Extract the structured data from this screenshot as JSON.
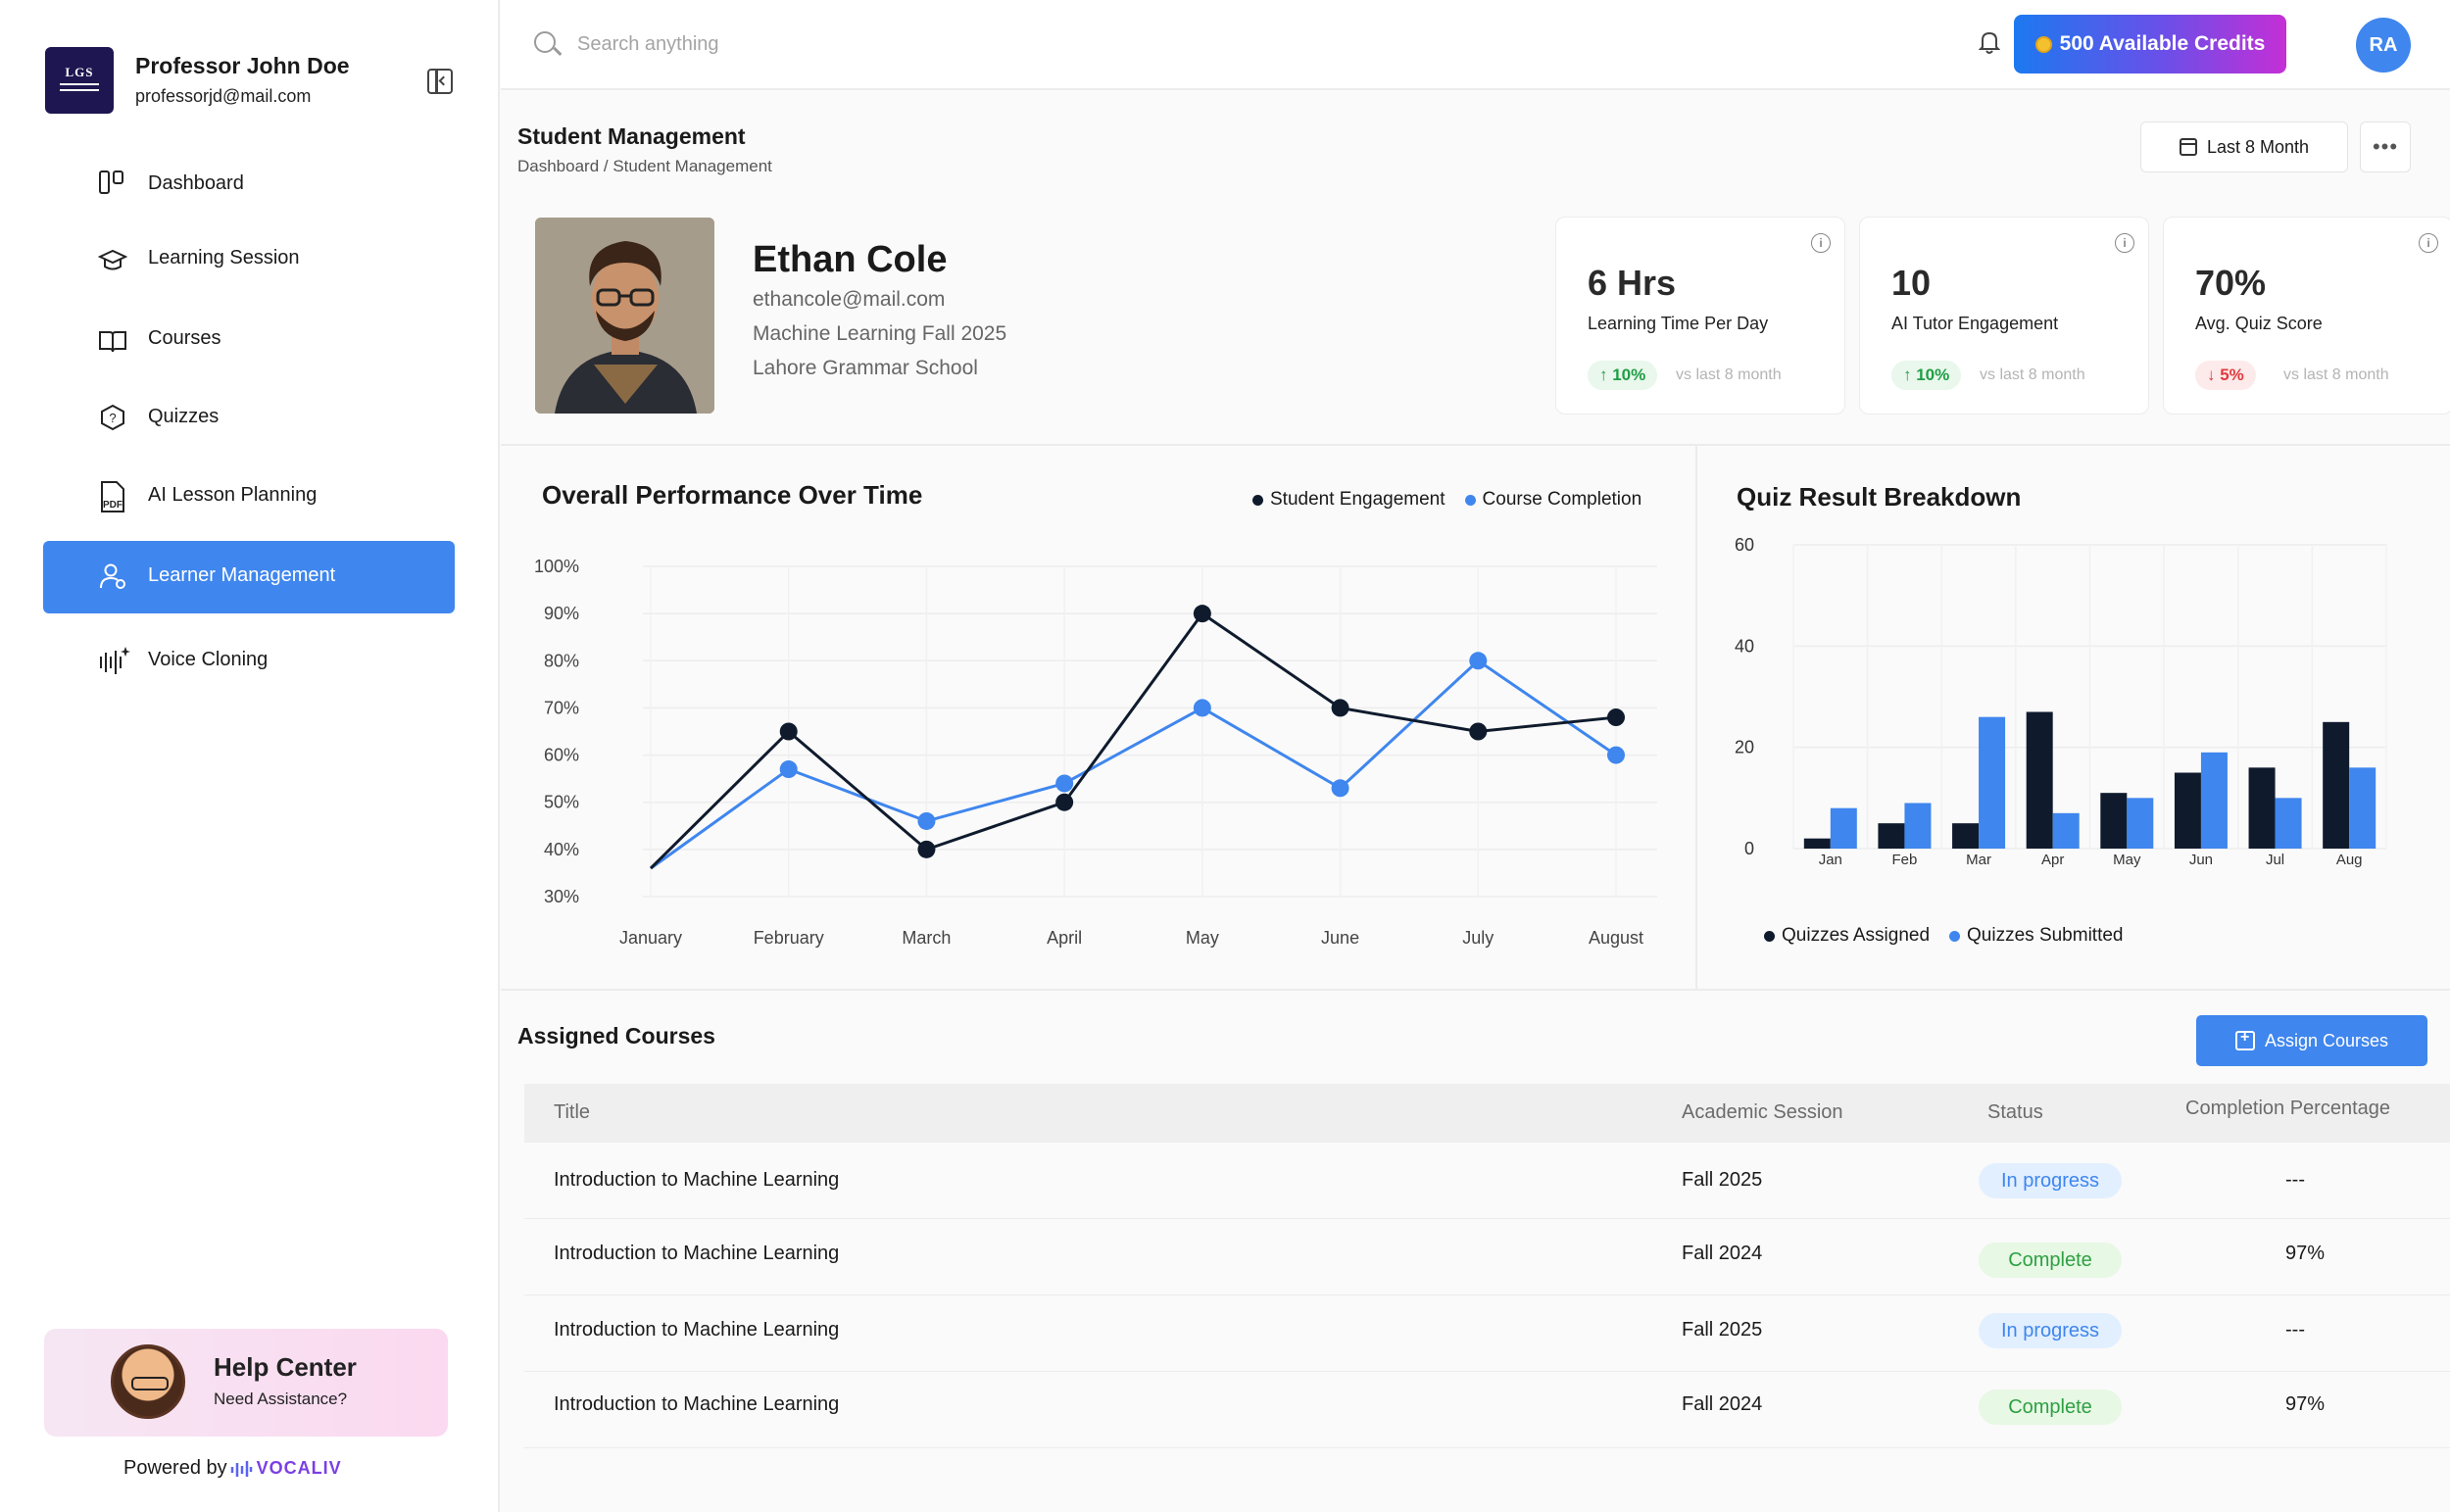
{
  "user": {
    "name": "Professor John Doe",
    "email": "professorjd@mail.com",
    "logo_text": "LGS"
  },
  "nav": [
    {
      "label": "Dashboard",
      "icon": "dashboard-icon",
      "active": false
    },
    {
      "label": "Learning Session",
      "icon": "graduation-cap-icon",
      "active": false
    },
    {
      "label": "Courses",
      "icon": "book-icon",
      "active": false
    },
    {
      "label": "Quizzes",
      "icon": "quiz-icon",
      "active": false
    },
    {
      "label": "AI Lesson Planning",
      "icon": "pdf-icon",
      "active": false
    },
    {
      "label": "Learner Management",
      "icon": "user-gear-icon",
      "active": true
    },
    {
      "label": "Voice Cloning",
      "icon": "voice-wave-icon",
      "active": false
    }
  ],
  "help": {
    "title": "Help Center",
    "subtitle": "Need Assistance?"
  },
  "powered": {
    "prefix": "Powered by",
    "brand": "VOCALIV"
  },
  "topbar": {
    "search_placeholder": "Search anything",
    "credits_label": "500 Available Credits",
    "avatar_initials": "RA"
  },
  "page": {
    "title": "Student Management",
    "breadcrumb": "Dashboard / Student Management",
    "date_filter": "Last 8 Month",
    "more_label": "•••"
  },
  "student": {
    "name": "Ethan Cole",
    "email": "ethancole@mail.com",
    "course": "Machine Learning Fall 2025",
    "school": "Lahore Grammar School"
  },
  "stats": [
    {
      "value": "6 Hrs",
      "label": "Learning Time Per Day",
      "change": "↑ 10%",
      "trend": "up",
      "compare": "vs last 8 month"
    },
    {
      "value": "10",
      "label": "AI Tutor Engagement",
      "change": "↑ 10%",
      "trend": "up",
      "compare": "vs last 8 month"
    },
    {
      "value": "70%",
      "label": "Avg. Quiz Score",
      "change": "↓ 5%",
      "trend": "down",
      "compare": "vs last 8 month"
    }
  ],
  "colors": {
    "accent": "#3f86ee",
    "dark": "#0f1b2d",
    "up": "#1f9e44",
    "down": "#e0393d"
  },
  "chart_data": [
    {
      "type": "line",
      "title": "Overall Performance Over Time",
      "categories": [
        "January",
        "February",
        "March",
        "April",
        "May",
        "June",
        "July",
        "August"
      ],
      "y_ticks": [
        "100%",
        "90%",
        "80%",
        "70%",
        "60%",
        "50%",
        "40%",
        "30%"
      ],
      "ylim": [
        30,
        100
      ],
      "legend_position": "top-right",
      "series": [
        {
          "name": "Student Engagement",
          "color": "#0f1b2d",
          "values": [
            36,
            65,
            40,
            50,
            90,
            70,
            65,
            68
          ]
        },
        {
          "name": "Course Completion",
          "color": "#3f86ee",
          "values": [
            36,
            57,
            46,
            54,
            70,
            53,
            80,
            60
          ]
        }
      ]
    },
    {
      "type": "bar",
      "title": "Quiz Result Breakdown",
      "categories": [
        "Jan",
        "Feb",
        "Mar",
        "Apr",
        "May",
        "Jun",
        "Jul",
        "Aug"
      ],
      "y_ticks": [
        "60",
        "40",
        "20",
        "0"
      ],
      "ylim": [
        0,
        60
      ],
      "legend_position": "bottom-left",
      "series": [
        {
          "name": "Quizzes Assigned",
          "color": "#0f1b2d",
          "values": [
            2,
            5,
            5,
            27,
            11,
            15,
            16,
            25
          ]
        },
        {
          "name": "Quizzes Submitted",
          "color": "#3f86ee",
          "values": [
            8,
            9,
            26,
            7,
            10,
            19,
            10,
            16
          ]
        }
      ]
    }
  ],
  "courses": {
    "title": "Assigned Courses",
    "assign_label": "Assign Courses",
    "headers": [
      "Title",
      "Academic Session",
      "Status",
      "Completion Percentage"
    ],
    "rows": [
      {
        "title": "Introduction to Machine Learning",
        "session": "Fall 2025",
        "status": "In progress",
        "kind": "progress",
        "completion": "---"
      },
      {
        "title": "Introduction to Machine Learning",
        "session": "Fall 2024",
        "status": "Complete",
        "kind": "complete",
        "completion": "97%"
      },
      {
        "title": "Introduction to Machine Learning",
        "session": "Fall 2025",
        "status": "In progress",
        "kind": "progress",
        "completion": "---"
      },
      {
        "title": "Introduction to Machine Learning",
        "session": "Fall 2024",
        "status": "Complete",
        "kind": "complete",
        "completion": "97%"
      }
    ]
  }
}
